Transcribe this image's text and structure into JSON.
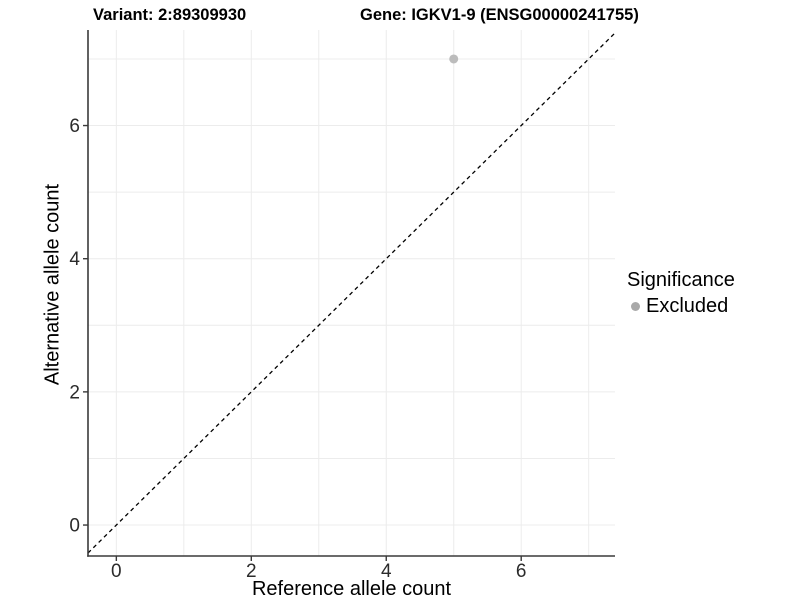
{
  "chart_data": {
    "type": "scatter",
    "title_left": "Variant: 2:89309930",
    "title_right": "Gene: IGKV1-9 (ENSG00000241755)",
    "xlabel": "Reference allele count",
    "ylabel": "Alternative allele count",
    "xlim": [
      -0.42,
      7.39
    ],
    "ylim": [
      -0.465,
      7.435
    ],
    "xticks": [
      0,
      2,
      4,
      6
    ],
    "yticks": [
      0,
      2,
      4,
      6
    ],
    "gridlines": [
      0,
      1,
      2,
      3,
      4,
      5,
      6,
      7
    ],
    "grid_color": "#ececec",
    "axis_color": "#3a3a3a",
    "tick_label_color": "#2b2b2b",
    "grid_on": true,
    "reference_line": {
      "type": "identity",
      "equation": "y = x",
      "style": "dashed",
      "color": "#000000"
    },
    "series": [
      {
        "name": "Excluded",
        "color": "#bcbcbc",
        "points": [
          {
            "x": 5,
            "y": 7
          }
        ]
      }
    ],
    "legend": {
      "title": "Significance",
      "position": "right",
      "items": [
        {
          "label": "Excluded",
          "color": "#a9a9a9"
        }
      ]
    }
  }
}
